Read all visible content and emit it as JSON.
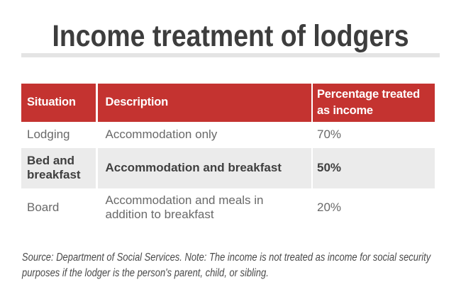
{
  "title": "Income treatment of lodgers",
  "colors": {
    "header_bg": "#c43330",
    "alt_row_bg": "#ebebeb",
    "title_bar": "#e4e4e4",
    "title_text": "#3d3d3d",
    "body_text": "#696969"
  },
  "table": {
    "columns": [
      "Situation",
      "Description",
      "Percentage treated as income"
    ],
    "rows": [
      {
        "situation": "Lodging",
        "description": "Accommodation only",
        "percentage": "70%"
      },
      {
        "situation": "Bed and breakfast",
        "description": "Accommodation and breakfast",
        "percentage": "50%"
      },
      {
        "situation": "Board",
        "description": "Accommodation and meals in addition to breakfast",
        "percentage": "20%"
      }
    ]
  },
  "source_note": {
    "lines": [
      "Source: Department of Social Services. Note: The income is not treated as income for social security",
      "purposes if the lodger is the person's parent, child, or sibling."
    ]
  },
  "chart_data": {
    "type": "table",
    "title": "Income treatment of lodgers",
    "columns": [
      "Situation",
      "Description",
      "Percentage treated as income"
    ],
    "rows": [
      [
        "Lodging",
        "Accommodation only",
        "70%"
      ],
      [
        "Bed and breakfast",
        "Accommodation and breakfast",
        "50%"
      ],
      [
        "Board",
        "Accommodation and meals in addition to breakfast",
        "20%"
      ]
    ],
    "source_note": "Source: Department of Social Services. Note: The income is not treated as income for social security purposes if the lodger is the person's parent, child, or sibling."
  }
}
